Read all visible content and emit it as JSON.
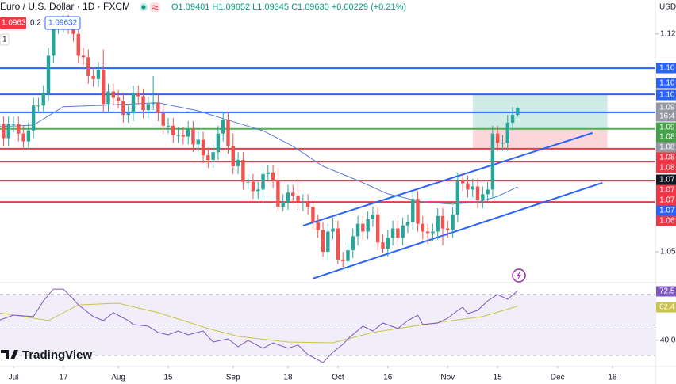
{
  "chart_data": {
    "type": "candlestick",
    "title": "Euro / U.S. Dollar · 1D · FXCM",
    "ohlc_text": "O1.09401 H1.09652 L1.09345 C1.09630 +0.00229 (+0.21%)",
    "legend_row": [
      "1.09630",
      "0.2",
      "1.09632"
    ],
    "indicator_count": "1",
    "currency": "USD",
    "countdown": "16:4",
    "brand": "TradingView",
    "xlim": [
      0.3,
      131.6
    ],
    "xticks": [
      {
        "value": 3,
        "label": "Jul"
      },
      {
        "value": 13,
        "label": "17"
      },
      {
        "value": 24,
        "label": "Aug"
      },
      {
        "value": 34,
        "label": "15"
      },
      {
        "value": 47,
        "label": "Sep"
      },
      {
        "value": 58,
        "label": "18"
      },
      {
        "value": 68,
        "label": "Oct"
      },
      {
        "value": 78,
        "label": "16"
      },
      {
        "value": 90,
        "label": "Nov"
      },
      {
        "value": 100,
        "label": "15"
      },
      {
        "value": 112,
        "label": "Dec"
      },
      {
        "value": 123,
        "label": "18"
      }
    ],
    "ylim": [
      1.0406,
      1.1309
    ],
    "yticks": [
      1.12,
      1.05
    ],
    "up_color": "#26a69a",
    "down_color": "#ef5350",
    "open": [
      1.09,
      1.091,
      1.0865,
      1.091,
      1.091,
      1.088,
      1.0855,
      1.089,
      1.097,
      1.097,
      1.101,
      1.113,
      1.1225,
      1.123,
      1.1235,
      1.1225,
      1.12,
      1.113,
      1.1125,
      1.1065,
      1.1055,
      1.1085,
      1.0975,
      1.1015,
      1.0995,
      1.0985,
      1.094,
      1.0945,
      1.101,
      1.1,
      1.0955,
      1.0975,
      1.098,
      1.0945,
      1.0905,
      1.0905,
      1.0875,
      1.0875,
      1.087,
      1.0895,
      1.0845,
      1.086,
      1.081,
      1.0795,
      1.082,
      1.088,
      1.0925,
      1.084,
      1.0775,
      1.0795,
      1.0725,
      1.0725,
      1.0695,
      1.07,
      1.075,
      1.0755,
      1.073,
      1.0645,
      1.066,
      1.069,
      1.068,
      1.066,
      1.066,
      1.0645,
      1.0595,
      1.057,
      1.05,
      1.0565,
      1.0575,
      1.0475,
      1.047,
      1.0505,
      1.055,
      1.059,
      1.0565,
      1.0605,
      1.062,
      1.053,
      1.051,
      1.0545,
      1.0575,
      1.0545,
      1.0585,
      1.0595,
      1.067,
      1.059,
      1.0565,
      1.056,
      1.0565,
      1.0615,
      1.0575,
      1.057,
      1.062,
      1.073,
      1.072,
      1.07,
      1.071,
      1.0665,
      1.0685,
      1.07,
      1.088,
      1.085,
      1.085,
      1.0915,
      1.09401
    ],
    "high": [
      1.0935,
      1.0935,
      1.0935,
      1.0935,
      1.0935,
      1.0905,
      1.0915,
      1.0995,
      1.0995,
      1.1035,
      1.1155,
      1.125,
      1.1255,
      1.126,
      1.1275,
      1.125,
      1.1225,
      1.1155,
      1.115,
      1.109,
      1.111,
      1.115,
      1.104,
      1.104,
      1.102,
      1.101,
      1.097,
      1.1035,
      1.1035,
      1.1025,
      1.1,
      1.1065,
      1.1005,
      1.097,
      1.093,
      1.093,
      1.09,
      1.09,
      1.092,
      1.092,
      1.0885,
      1.0885,
      1.0835,
      1.0845,
      1.0905,
      1.095,
      1.095,
      1.088,
      1.082,
      1.082,
      1.075,
      1.075,
      1.0725,
      1.0775,
      1.078,
      1.078,
      1.077,
      1.0685,
      1.0715,
      1.0715,
      1.0735,
      1.0685,
      1.0685,
      1.067,
      1.062,
      1.0595,
      1.059,
      1.061,
      1.06,
      1.05,
      1.053,
      1.0575,
      1.0615,
      1.0615,
      1.063,
      1.0645,
      1.0645,
      1.0555,
      1.057,
      1.06,
      1.06,
      1.061,
      1.062,
      1.0695,
      1.0695,
      1.0615,
      1.059,
      1.059,
      1.064,
      1.064,
      1.06,
      1.0645,
      1.0755,
      1.0755,
      1.0745,
      1.0735,
      1.0735,
      1.071,
      1.0725,
      1.0905,
      1.0905,
      1.0875,
      1.094,
      1.0965,
      1.09652
    ],
    "low": [
      1.0875,
      1.084,
      1.084,
      1.0885,
      1.0855,
      1.083,
      1.083,
      1.0865,
      1.0945,
      1.0945,
      1.0985,
      1.1105,
      1.12,
      1.1205,
      1.12,
      1.1175,
      1.1105,
      1.11,
      1.104,
      1.103,
      1.103,
      1.095,
      1.095,
      1.097,
      1.096,
      1.0915,
      1.0915,
      1.092,
      1.0975,
      1.093,
      1.093,
      1.0955,
      1.092,
      1.088,
      1.088,
      1.085,
      1.085,
      1.0845,
      1.0845,
      1.082,
      1.082,
      1.0785,
      1.077,
      1.077,
      1.0795,
      1.0855,
      1.0815,
      1.075,
      1.075,
      1.07,
      1.07,
      1.067,
      1.067,
      1.0675,
      1.0725,
      1.0705,
      1.063,
      1.063,
      1.0635,
      1.0655,
      1.0635,
      1.063,
      1.062,
      1.057,
      1.0545,
      1.0485,
      1.0475,
      1.054,
      1.046,
      1.045,
      1.0445,
      1.048,
      1.052,
      1.054,
      1.054,
      1.058,
      1.0505,
      1.0495,
      1.0485,
      1.052,
      1.052,
      1.052,
      1.056,
      1.057,
      1.0565,
      1.054,
      1.0525,
      1.0535,
      1.054,
      1.052,
      1.0545,
      1.0545,
      1.0595,
      1.0695,
      1.0675,
      1.0675,
      1.064,
      1.064,
      1.066,
      1.0675,
      1.0825,
      1.0825,
      1.0825,
      1.089,
      1.09345
    ],
    "close": [
      1.091,
      1.0865,
      1.091,
      1.091,
      1.088,
      1.0855,
      1.089,
      1.097,
      1.097,
      1.101,
      1.113,
      1.1225,
      1.123,
      1.1235,
      1.1225,
      1.12,
      1.113,
      1.1125,
      1.1065,
      1.1055,
      1.1085,
      1.0975,
      1.1015,
      1.0995,
      1.0985,
      1.094,
      1.0945,
      1.101,
      1.1,
      1.0955,
      1.0975,
      1.098,
      1.0945,
      1.0905,
      1.0905,
      1.0875,
      1.0875,
      1.087,
      1.0895,
      1.0845,
      1.086,
      1.081,
      1.0795,
      1.082,
      1.088,
      1.0925,
      1.084,
      1.0775,
      1.0795,
      1.0725,
      1.0725,
      1.0695,
      1.07,
      1.075,
      1.0755,
      1.073,
      1.0645,
      1.066,
      1.069,
      1.068,
      1.066,
      1.066,
      1.0645,
      1.0595,
      1.057,
      1.05,
      1.0565,
      1.0575,
      1.0475,
      1.047,
      1.0505,
      1.055,
      1.059,
      1.0565,
      1.0605,
      1.062,
      1.053,
      1.051,
      1.0545,
      1.0575,
      1.0545,
      1.0585,
      1.0595,
      1.067,
      1.059,
      1.0565,
      1.056,
      1.0565,
      1.0615,
      1.0575,
      1.057,
      1.062,
      1.073,
      1.072,
      1.07,
      1.071,
      1.0665,
      1.0685,
      1.07,
      1.088,
      1.085,
      1.085,
      1.0915,
      1.094,
      1.0963
    ],
    "levels": [
      {
        "value": 1.109,
        "color": "#2962ff"
      },
      {
        "value": 1.1006,
        "color": "#2962ff"
      },
      {
        "value": 1.0948,
        "color": "#2962ff"
      },
      {
        "value": 1.0895,
        "color": "#4caf50"
      },
      {
        "value": 1.0831,
        "color": "#f23645"
      },
      {
        "value": 1.079,
        "color": "#f23645"
      },
      {
        "value": 1.0729,
        "color": "#f23645"
      },
      {
        "value": 1.066,
        "color": "#f23645"
      }
    ],
    "trendlines": [
      {
        "x": [
          61,
          119
        ],
        "y": [
          1.0584,
          1.0882
        ],
        "color": "#2962ff"
      },
      {
        "x": [
          63,
          121
        ],
        "y": [
          1.0414,
          1.0722
        ],
        "color": "#2962ff"
      }
    ],
    "position": {
      "x": [
        95,
        122
      ],
      "target": 1.1006,
      "entry": 1.0895,
      "stop": 1.0831
    },
    "ma": {
      "color": "#5b7bd5",
      "x": [
        0,
        7,
        13,
        21,
        32,
        40,
        46,
        53,
        59,
        65,
        72,
        78,
        85,
        91,
        96,
        100,
        104
      ],
      "values": [
        1.0902,
        1.0907,
        1.0966,
        1.0971,
        1.0979,
        1.0953,
        1.0923,
        1.0889,
        1.0839,
        1.0775,
        1.0729,
        1.0686,
        1.066,
        1.0653,
        1.066,
        1.0678,
        1.0709
      ]
    },
    "price_labels": [
      {
        "label": "1.10",
        "color": "#2962ff"
      },
      {
        "label": "1.10",
        "color": "#2962ff"
      },
      {
        "label": "1.10",
        "color": "#2962ff"
      },
      {
        "label": "1.09",
        "color": "#9598a1"
      },
      {
        "label": "1.09",
        "color": "#43a047"
      },
      {
        "label": "1.08",
        "color": "#43a047"
      },
      {
        "label": "1.08",
        "color": "#9598a1"
      },
      {
        "label": "1.08",
        "color": "#f23645"
      },
      {
        "label": "1.08",
        "color": "#f23645"
      },
      {
        "label": "1.07",
        "color": "#131722"
      },
      {
        "label": "1.07",
        "color": "#f23645"
      },
      {
        "label": "1.07",
        "color": "#f23645"
      },
      {
        "label": "1.07",
        "color": "#2962ff"
      },
      {
        "label": "1.06",
        "color": "#f23645"
      }
    ],
    "rsi": {
      "ylim": [
        23.2,
        77.8
      ],
      "yticks": [
        {
          "value": 40,
          "label": "40.0"
        }
      ],
      "bands": [
        70,
        50,
        30
      ],
      "color": "#7e57c2",
      "x": [
        0,
        3,
        7,
        9,
        11,
        13,
        15,
        16,
        19,
        21,
        23,
        26,
        27,
        30,
        32,
        34,
        36,
        38,
        41,
        43,
        46,
        48,
        50,
        53,
        55,
        58,
        60,
        62,
        65,
        67,
        69,
        70,
        73,
        75,
        77,
        80,
        82,
        84,
        85,
        88,
        90,
        92,
        93,
        94,
        96,
        98,
        100,
        102,
        104
      ],
      "values": [
        52.9,
        56.5,
        55.5,
        65.8,
        73.6,
        73.6,
        66.9,
        63.2,
        55.5,
        52.9,
        58.1,
        52.9,
        50.3,
        49.2,
        45.1,
        43.5,
        46.1,
        43.5,
        46.1,
        38.8,
        40.9,
        35.7,
        39.9,
        34.7,
        38.3,
        34.7,
        36.8,
        30.5,
        25.3,
        32.1,
        37.3,
        40.9,
        49.2,
        46.1,
        51.3,
        47.7,
        52.9,
        56.5,
        50.3,
        51.3,
        54.4,
        59.6,
        61.7,
        57.5,
        59.6,
        65.8,
        70.0,
        66.9,
        72.5
      ],
      "ma": {
        "color": "#c9c34a",
        "x": [
          0,
          10,
          16,
          24,
          32,
          42,
          48,
          58,
          67,
          75,
          83,
          91,
          97,
          104
        ],
        "values": [
          58.1,
          52.9,
          63.2,
          64.3,
          58.1,
          47.7,
          42.5,
          38.8,
          38.3,
          45.1,
          49.2,
          52.9,
          55.5,
          62.4
        ]
      },
      "labels": [
        {
          "label": "72.5",
          "color": "#7e57c2"
        },
        {
          "label": "62.4",
          "color": "#c9c34a"
        }
      ]
    }
  }
}
